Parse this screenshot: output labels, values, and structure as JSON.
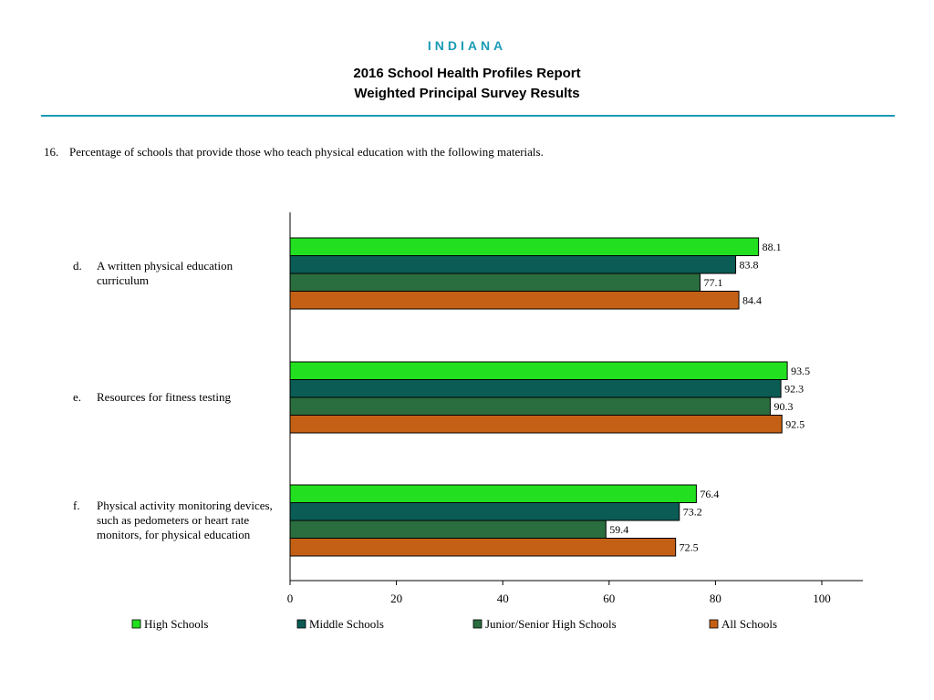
{
  "header": {
    "state": "INDIANA",
    "title_line1": "2016 School Health Profiles Report",
    "title_line2": "Weighted Principal Survey Results"
  },
  "question": {
    "number": "16.",
    "text": "Percentage of schools that provide those who teach physical education with the following materials."
  },
  "chart_data": {
    "type": "bar",
    "orientation": "horizontal",
    "categories": [
      {
        "letter": "d.",
        "lines": [
          "A written physical education",
          "curriculum"
        ]
      },
      {
        "letter": "e.",
        "lines": [
          "Resources for fitness testing"
        ]
      },
      {
        "letter": "f.",
        "lines": [
          "Physical activity monitoring devices,",
          "such as pedometers or heart rate",
          "monitors, for physical education"
        ]
      }
    ],
    "series": [
      {
        "name": "High Schools",
        "color": "#22e01f",
        "values": [
          88.1,
          93.5,
          76.4
        ]
      },
      {
        "name": "Middle Schools",
        "color": "#0b5c55",
        "values": [
          83.8,
          92.3,
          73.2
        ]
      },
      {
        "name": "Junior/Senior High Schools",
        "color": "#2a6d3e",
        "values": [
          77.1,
          90.3,
          59.4
        ]
      },
      {
        "name": "All Schools",
        "color": "#c46015",
        "values": [
          84.4,
          92.5,
          72.5
        ]
      }
    ],
    "xlim": [
      0,
      100
    ],
    "xticks": [
      0,
      20,
      40,
      60,
      80,
      100
    ],
    "grid": false,
    "legend_position": "bottom"
  }
}
